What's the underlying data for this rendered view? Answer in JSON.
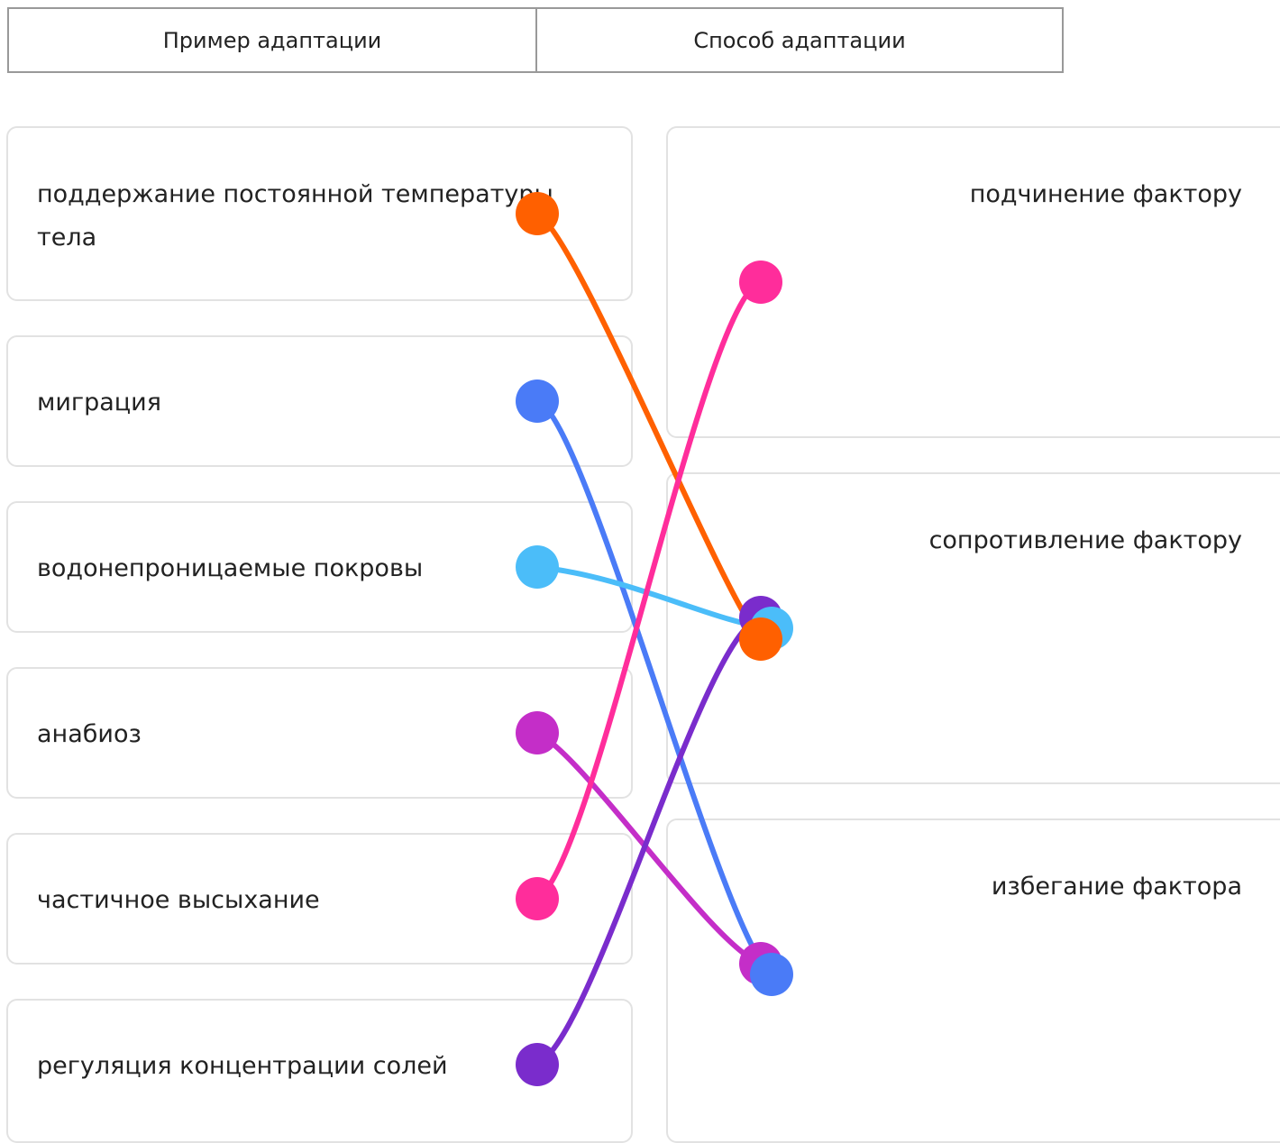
{
  "header": {
    "columns": [
      "Пример адаптации",
      "Способ адаптации"
    ]
  },
  "left_items": [
    "поддержание постоянной температуры тела",
    "миграция",
    "водонепроницаемые покровы",
    "анабиоз",
    "частичное высыхание",
    "регуляция концентрации солей"
  ],
  "right_items": [
    "подчинение фактору",
    "сопротивление фактору",
    "избегание фактора"
  ]
}
